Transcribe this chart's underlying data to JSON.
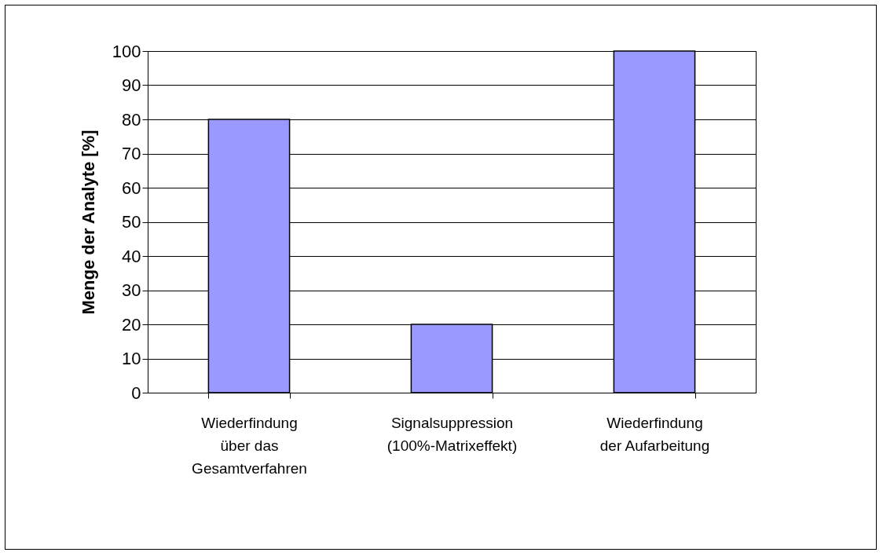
{
  "chart_data": {
    "type": "bar",
    "ylabel": "Menge der Analyte [%]",
    "categories": [
      "Wiederfindung\nüber das\nGesamtverfahren",
      "Signalsuppression\n(100%-Matrixeffekt)",
      "Wiederfindung\nder  Aufarbeitung"
    ],
    "values": [
      80,
      20,
      100
    ],
    "color": "#9999ff",
    "ylim": [
      0,
      100
    ],
    "yticks": [
      0,
      10,
      20,
      30,
      40,
      50,
      60,
      70,
      80,
      90,
      100
    ],
    "grid": "y"
  }
}
